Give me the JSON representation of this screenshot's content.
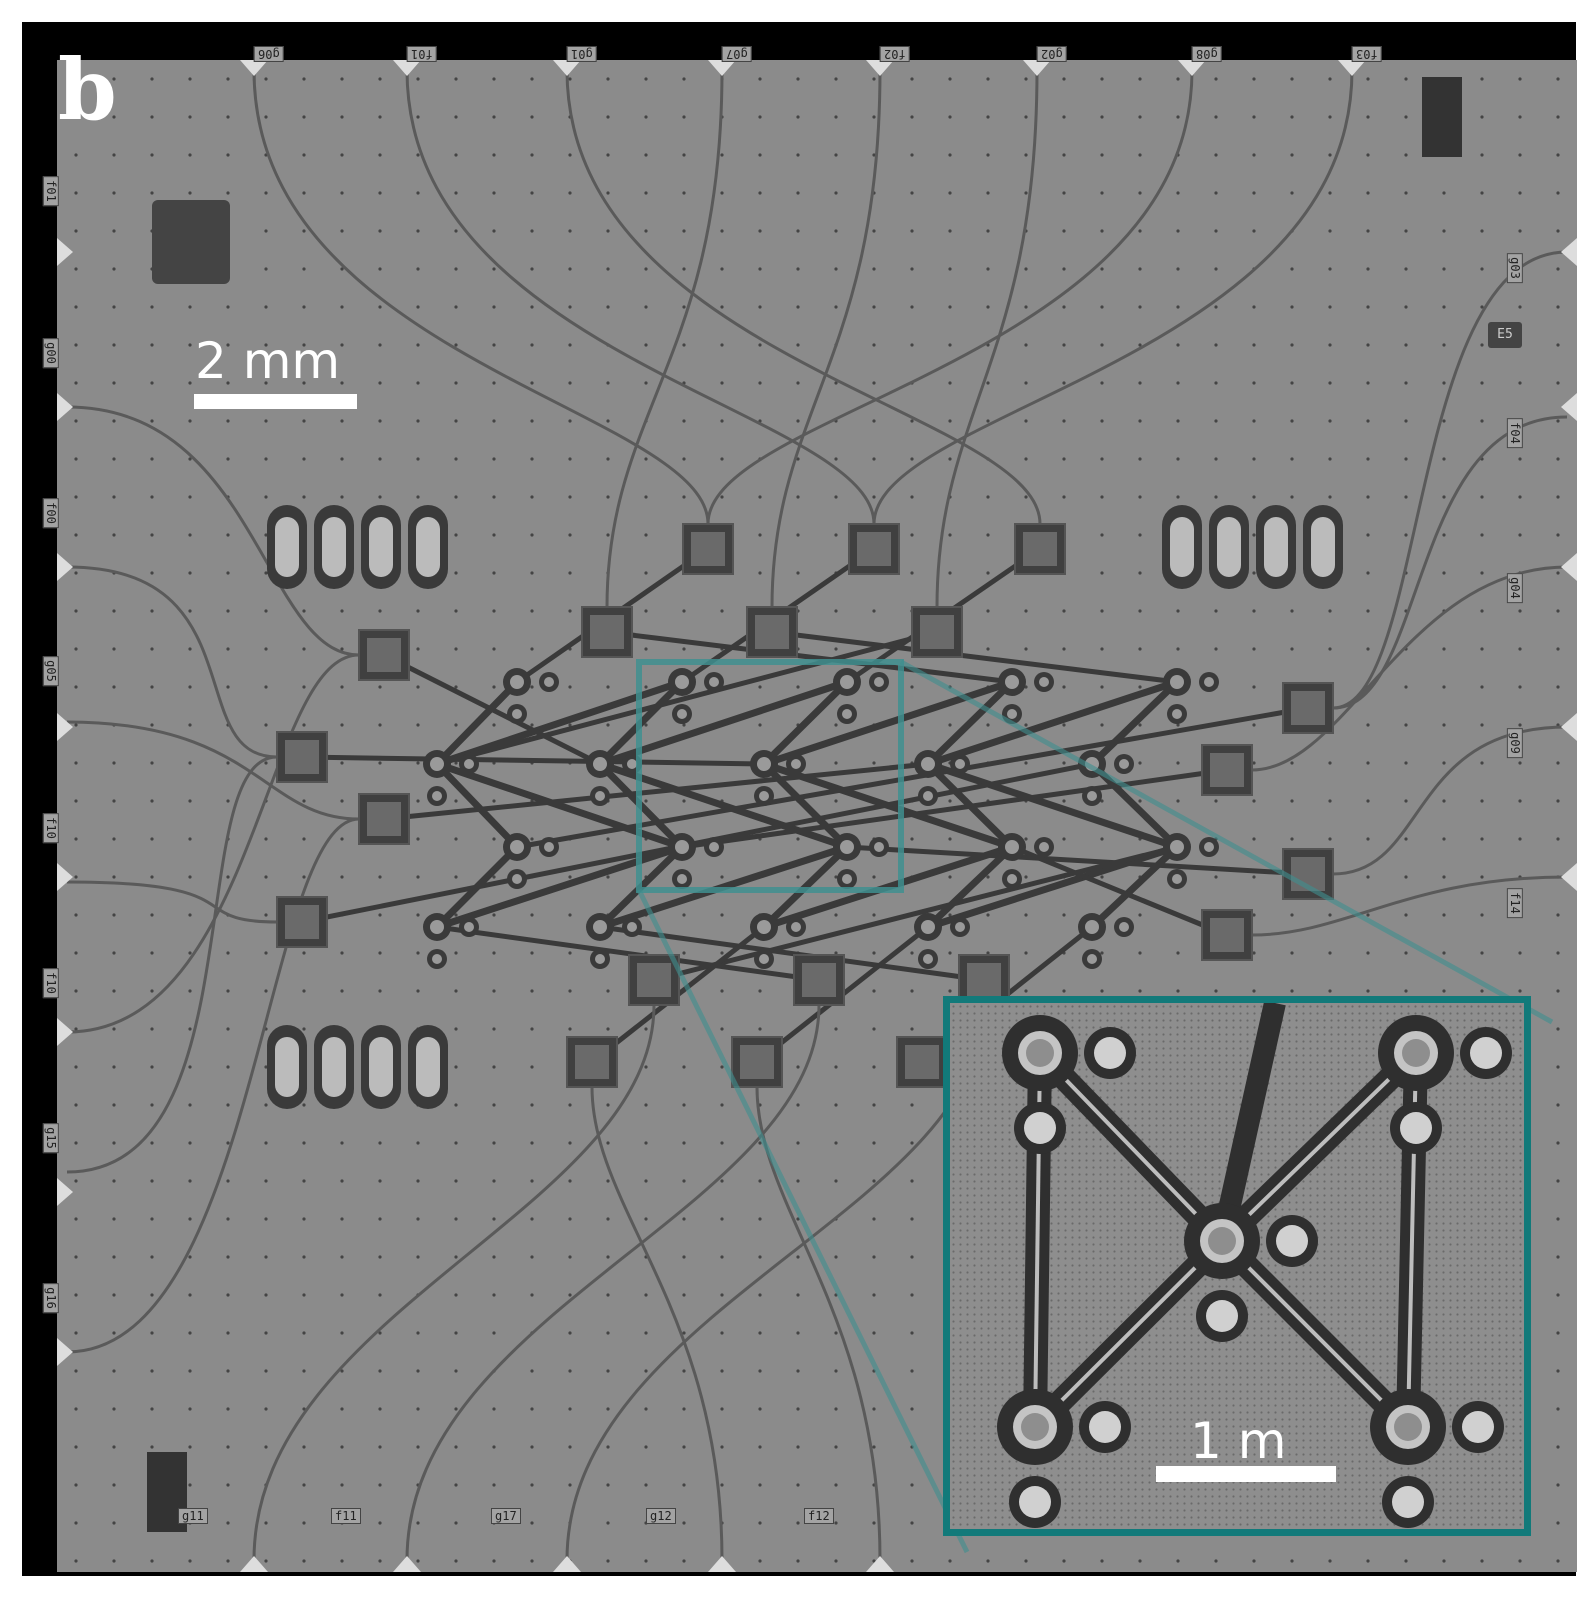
{
  "figure": {
    "panel_letter": "b",
    "scalebar_main": "2 mm",
    "scalebar_inset": "1 m",
    "chip_mark": "E5",
    "top_pads": [
      "g06",
      "f01",
      "g01",
      "g07",
      "f02",
      "g02",
      "g08",
      "f03"
    ],
    "bottom_pads": [
      "g11",
      "f11",
      "g17",
      "g12",
      "f12"
    ],
    "left_pads": [
      "f01",
      "g00",
      "f00",
      "g05",
      "f10",
      "f10",
      "g15",
      "g16"
    ],
    "right_pads": [
      "g03",
      "f04",
      "g04",
      "g09",
      "f14"
    ],
    "colors": {
      "background": "#000000",
      "chip": "#8b8b8b",
      "traces": "#3a3a3a",
      "highlight": "#127a7a"
    }
  }
}
